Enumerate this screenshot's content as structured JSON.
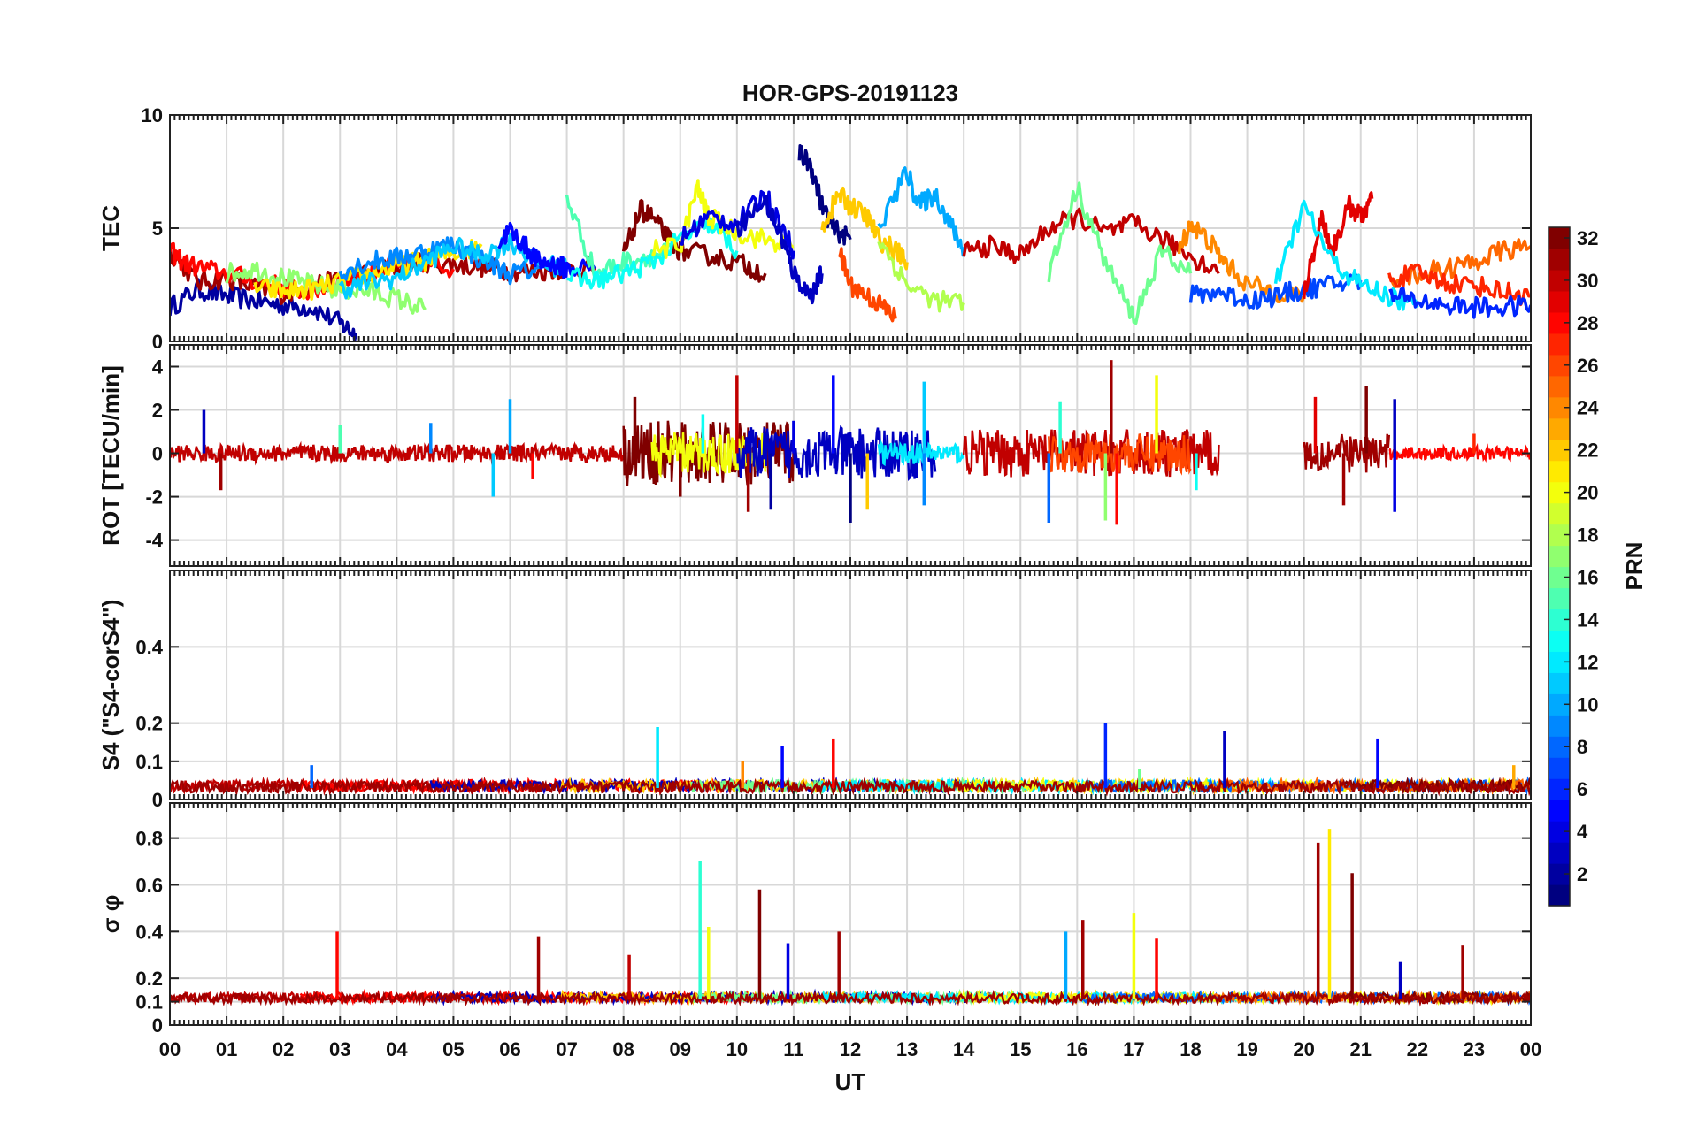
{
  "chart_data": {
    "type": "line",
    "title": "HOR-GPS-20191123",
    "xlabel": "UT",
    "x_ticks": [
      "00",
      "01",
      "02",
      "03",
      "04",
      "05",
      "06",
      "07",
      "08",
      "09",
      "10",
      "11",
      "12",
      "13",
      "14",
      "15",
      "16",
      "17",
      "18",
      "19",
      "20",
      "21",
      "22",
      "23",
      "00"
    ],
    "xlim_hours": [
      0,
      24
    ],
    "colorbar": {
      "label": "PRN",
      "range": [
        1,
        32
      ],
      "ticks": [
        "2",
        "4",
        "6",
        "8",
        "10",
        "12",
        "14",
        "16",
        "18",
        "20",
        "22",
        "24",
        "26",
        "28",
        "30",
        "32"
      ],
      "colormap": "jet"
    },
    "panels": [
      {
        "id": "tec",
        "ylabel": "TEC",
        "ylim": [
          0,
          10
        ],
        "yticks": [
          "0",
          "5",
          "10"
        ],
        "series": [
          {
            "prn": 2,
            "x": [
              0.0,
              0.5,
              1.0,
              1.5,
              2.0,
              2.5,
              3.0,
              3.3
            ],
            "y": [
              1.5,
              2.3,
              2.0,
              1.8,
              1.6,
              1.5,
              0.8,
              0.3
            ]
          },
          {
            "prn": 31,
            "x": [
              0.0,
              0.5,
              1.0,
              1.5,
              2.0,
              2.5,
              3.0,
              3.5,
              4.0,
              4.5,
              5.0,
              5.5,
              6.0,
              6.5,
              7.0,
              7.5
            ],
            "y": [
              4.0,
              2.6,
              2.8,
              2.4,
              2.1,
              2.5,
              2.7,
              3.0,
              3.3,
              3.5,
              3.4,
              3.3,
              3.1,
              3.1,
              3.2,
              3.3
            ]
          },
          {
            "prn": 28,
            "x": [
              0.0,
              0.3,
              0.8,
              1.5,
              2.0,
              2.5,
              3.0,
              3.5,
              4.0,
              4.5,
              5.0
            ],
            "y": [
              4.0,
              3.4,
              3.1,
              2.7,
              2.4,
              2.2,
              2.6,
              3.0,
              3.3,
              3.5,
              3.2
            ]
          },
          {
            "prn": 17,
            "x": [
              1.0,
              1.5,
              2.0,
              2.5,
              3.0,
              3.5,
              4.0,
              4.5
            ],
            "y": [
              3.0,
              3.2,
              2.8,
              2.5,
              2.3,
              2.2,
              1.9,
              1.4
            ]
          },
          {
            "prn": 21,
            "x": [
              1.5,
              2.0,
              2.5,
              3.0,
              3.5,
              4.0,
              4.5,
              5.0,
              5.5
            ],
            "y": [
              2.4,
              2.2,
              2.3,
              2.6,
              3.0,
              3.3,
              3.6,
              3.9,
              4.2
            ]
          },
          {
            "prn": 9,
            "x": [
              3.0,
              3.5,
              4.0,
              4.5,
              5.0,
              5.5,
              6.0,
              6.5
            ],
            "y": [
              3.1,
              3.5,
              3.7,
              4.0,
              4.3,
              3.6,
              3.0,
              3.2
            ]
          },
          {
            "prn": 11,
            "x": [
              3.0,
              3.5,
              4.0,
              4.5,
              5.0,
              5.5,
              6.0,
              6.5,
              7.0
            ],
            "y": [
              2.3,
              2.6,
              2.8,
              3.5,
              4.2,
              3.8,
              4.4,
              3.5,
              3.2
            ]
          },
          {
            "prn": 5,
            "x": [
              5.8,
              6.0,
              6.3,
              6.5,
              6.8,
              7.0,
              7.5
            ],
            "y": [
              4.4,
              4.9,
              4.1,
              3.5,
              3.4,
              3.2,
              3.3
            ]
          },
          {
            "prn": 15,
            "x": [
              7.0,
              7.5,
              8.0,
              8.5,
              9.0
            ],
            "y": [
              6.4,
              3.0,
              3.5,
              3.8,
              4.0
            ]
          },
          {
            "prn": 32,
            "x": [
              8.0,
              8.3,
              8.5,
              8.8,
              9.0,
              9.5,
              10.0,
              10.5
            ],
            "y": [
              3.8,
              5.8,
              5.5,
              4.5,
              4.0,
              3.8,
              3.5,
              3.0
            ]
          },
          {
            "prn": 13,
            "x": [
              7.0,
              7.5,
              8.0,
              8.5,
              9.0,
              9.5,
              10.0
            ],
            "y": [
              2.8,
              2.7,
              3.0,
              3.5,
              4.5,
              5.2,
              4.0
            ]
          },
          {
            "prn": 20,
            "x": [
              8.5,
              9.0,
              9.3,
              9.5,
              10.0,
              10.5,
              11.0
            ],
            "y": [
              4.0,
              4.2,
              6.8,
              5.5,
              4.8,
              4.5,
              4.2
            ]
          },
          {
            "prn": 4,
            "x": [
              9.0,
              9.5,
              10.0,
              10.5,
              10.8,
              11.0
            ],
            "y": [
              4.5,
              5.5,
              5.2,
              6.5,
              5.0,
              4.0
            ]
          },
          {
            "prn": 3,
            "x": [
              10.0,
              10.5,
              10.8,
              11.0,
              11.3,
              11.5
            ],
            "y": [
              5.0,
              6.2,
              4.5,
              3.0,
              2.0,
              3.0
            ]
          },
          {
            "prn": 1,
            "x": [
              11.1,
              11.3,
              11.5,
              11.7,
              12.0
            ],
            "y": [
              8.3,
              7.8,
              6.0,
              5.0,
              4.5
            ]
          },
          {
            "prn": 22,
            "x": [
              11.5,
              11.8,
              12.0,
              12.3,
              12.5,
              12.8,
              13.0
            ],
            "y": [
              5.0,
              6.5,
              6.0,
              5.5,
              4.5,
              4.0,
              3.5
            ]
          },
          {
            "prn": 26,
            "x": [
              11.8,
              12.0,
              12.3,
              12.6,
              12.8
            ],
            "y": [
              4.0,
              2.5,
              2.0,
              1.5,
              1.0
            ]
          },
          {
            "prn": 10,
            "x": [
              12.5,
              13.0,
              13.2,
              13.5,
              13.8,
              14.0
            ],
            "y": [
              5.0,
              7.5,
              6.0,
              6.5,
              5.0,
              4.0
            ]
          },
          {
            "prn": 18,
            "x": [
              12.5,
              13.0,
              13.5,
              14.0
            ],
            "y": [
              4.5,
              2.5,
              1.8,
              1.7
            ]
          },
          {
            "prn": 30,
            "x": [
              14.0,
              14.5,
              15.0,
              15.5,
              16.0,
              16.5,
              17.0,
              17.5,
              18.0,
              18.5
            ],
            "y": [
              4.0,
              4.2,
              3.8,
              5.0,
              5.5,
              4.8,
              5.2,
              4.5,
              3.8,
              3.0
            ]
          },
          {
            "prn": 16,
            "x": [
              15.5,
              16.0,
              16.5,
              17.0,
              17.5,
              18.0
            ],
            "y": [
              3.0,
              6.8,
              3.5,
              1.0,
              4.0,
              3.0
            ]
          },
          {
            "prn": 24,
            "x": [
              17.8,
              18.0,
              18.3,
              18.6,
              19.0,
              19.5,
              20.0
            ],
            "y": [
              4.0,
              5.2,
              4.5,
              3.5,
              2.5,
              2.2,
              2.0
            ]
          },
          {
            "prn": 7,
            "x": [
              18.0,
              18.5,
              19.0,
              19.5,
              20.0,
              20.5,
              21.0
            ],
            "y": [
              2.0,
              2.2,
              1.8,
              2.0,
              2.3,
              2.5,
              2.7
            ]
          },
          {
            "prn": 29,
            "x": [
              20.0,
              20.3,
              20.5,
              20.8,
              21.0,
              21.2
            ],
            "y": [
              2.0,
              5.5,
              4.0,
              6.0,
              5.5,
              6.3
            ]
          },
          {
            "prn": 12,
            "x": [
              19.5,
              20.0,
              20.5,
              21.0,
              21.5,
              22.0
            ],
            "y": [
              2.5,
              6.0,
              3.5,
              2.5,
              2.0,
              1.5
            ]
          },
          {
            "prn": 25,
            "x": [
              21.5,
              22.0,
              22.5,
              23.0,
              23.5,
              24.0
            ],
            "y": [
              2.8,
              3.0,
              3.2,
              3.5,
              4.0,
              4.2
            ]
          },
          {
            "prn": 27,
            "x": [
              21.5,
              22.0,
              22.5,
              23.0,
              23.5,
              24.0
            ],
            "y": [
              2.7,
              3.0,
              2.6,
              2.5,
              2.2,
              2.0
            ]
          },
          {
            "prn": 6,
            "x": [
              21.5,
              22.0,
              22.5,
              23.0,
              23.5,
              24.0
            ],
            "y": [
              2.0,
              1.8,
              1.6,
              1.5,
              1.5,
              1.6
            ]
          }
        ]
      },
      {
        "id": "rot",
        "ylabel": "ROT [TECU/min]",
        "ylim": [
          -5.2,
          5
        ],
        "yticks": [
          "-4",
          "-2",
          "0",
          "2",
          "4"
        ],
        "spikes": [
          {
            "prn": 3,
            "x": 0.6,
            "y": 2.0
          },
          {
            "prn": 31,
            "x": 0.9,
            "y": -1.7
          },
          {
            "prn": 15,
            "x": 3.0,
            "y": 1.3
          },
          {
            "prn": 9,
            "x": 4.6,
            "y": 1.4
          },
          {
            "prn": 11,
            "x": 5.7,
            "y": -2.0
          },
          {
            "prn": 10,
            "x": 6.0,
            "y": 2.5
          },
          {
            "prn": 28,
            "x": 6.4,
            "y": -1.2
          },
          {
            "prn": 32,
            "x": 8.2,
            "y": 2.6
          },
          {
            "prn": 32,
            "x": 9.0,
            "y": -2.0
          },
          {
            "prn": 13,
            "x": 9.4,
            "y": 1.8
          },
          {
            "prn": 30,
            "x": 10.0,
            "y": 3.6
          },
          {
            "prn": 31,
            "x": 10.2,
            "y": -2.7
          },
          {
            "prn": 2,
            "x": 10.6,
            "y": -2.6
          },
          {
            "prn": 4,
            "x": 11.0,
            "y": 1.5
          },
          {
            "prn": 5,
            "x": 11.7,
            "y": 3.6
          },
          {
            "prn": 1,
            "x": 12.0,
            "y": -3.2
          },
          {
            "prn": 22,
            "x": 12.3,
            "y": -2.6
          },
          {
            "prn": 11,
            "x": 13.3,
            "y": 3.3
          },
          {
            "prn": 9,
            "x": 13.3,
            "y": -2.4
          },
          {
            "prn": 8,
            "x": 15.5,
            "y": -3.2
          },
          {
            "prn": 14,
            "x": 15.7,
            "y": 2.4
          },
          {
            "prn": 17,
            "x": 16.5,
            "y": -3.1
          },
          {
            "prn": 31,
            "x": 16.6,
            "y": 4.3
          },
          {
            "prn": 28,
            "x": 16.7,
            "y": -3.3
          },
          {
            "prn": 20,
            "x": 17.4,
            "y": 3.6
          },
          {
            "prn": 13,
            "x": 18.1,
            "y": -1.7
          },
          {
            "prn": 29,
            "x": 20.2,
            "y": 2.6
          },
          {
            "prn": 31,
            "x": 20.7,
            "y": -2.4
          },
          {
            "prn": 32,
            "x": 21.1,
            "y": 3.1
          },
          {
            "prn": 3,
            "x": 21.6,
            "y": 2.5
          },
          {
            "prn": 4,
            "x": 21.6,
            "y": -2.7
          },
          {
            "prn": 27,
            "x": 23.0,
            "y": 0.9
          }
        ],
        "bursts": [
          {
            "prn": 30,
            "start": 0.0,
            "end": 8.0,
            "amp": 0.4
          },
          {
            "prn": 32,
            "start": 8.0,
            "end": 11.0,
            "amp": 1.5
          },
          {
            "prn": 20,
            "start": 8.5,
            "end": 10.5,
            "amp": 1.0
          },
          {
            "prn": 3,
            "start": 10.0,
            "end": 13.5,
            "amp": 1.2
          },
          {
            "prn": 12,
            "start": 12.5,
            "end": 14.0,
            "amp": 0.5
          },
          {
            "prn": 30,
            "start": 14.0,
            "end": 18.5,
            "amp": 1.1
          },
          {
            "prn": 26,
            "start": 15.5,
            "end": 18.0,
            "amp": 0.9
          },
          {
            "prn": 31,
            "start": 20.0,
            "end": 21.5,
            "amp": 0.9
          },
          {
            "prn": 28,
            "start": 21.5,
            "end": 24.0,
            "amp": 0.3
          }
        ]
      },
      {
        "id": "s4",
        "ylabel": "S4 (\"S4-corS4\")",
        "ylim": [
          0,
          0.6
        ],
        "yticks": [
          "0",
          "0.1",
          "0.2",
          "0.4"
        ],
        "spikes": [
          {
            "prn": 12,
            "x": 8.6,
            "y": 0.19
          },
          {
            "prn": 5,
            "x": 10.8,
            "y": 0.14
          },
          {
            "prn": 28,
            "x": 11.7,
            "y": 0.16
          },
          {
            "prn": 24,
            "x": 10.1,
            "y": 0.1
          },
          {
            "prn": 6,
            "x": 16.5,
            "y": 0.2
          },
          {
            "prn": 3,
            "x": 18.6,
            "y": 0.18
          },
          {
            "prn": 5,
            "x": 21.3,
            "y": 0.16
          },
          {
            "prn": 8,
            "x": 2.5,
            "y": 0.09
          },
          {
            "prn": 16,
            "x": 17.1,
            "y": 0.08
          },
          {
            "prn": 23,
            "x": 23.7,
            "y": 0.09
          }
        ],
        "baseline": {
          "level": 0.03,
          "amp": 0.03
        }
      },
      {
        "id": "sigma_phi",
        "ylabel": "σ φ",
        "ylim": [
          0,
          0.95
        ],
        "yticks": [
          "0",
          "0.1",
          "0.2",
          "0.4",
          "0.6",
          "0.8"
        ],
        "spikes": [
          {
            "prn": 28,
            "x": 2.95,
            "y": 0.4
          },
          {
            "prn": 31,
            "x": 6.5,
            "y": 0.38
          },
          {
            "prn": 30,
            "x": 8.1,
            "y": 0.3
          },
          {
            "prn": 14,
            "x": 9.35,
            "y": 0.7
          },
          {
            "prn": 20,
            "x": 9.5,
            "y": 0.42
          },
          {
            "prn": 32,
            "x": 10.4,
            "y": 0.58
          },
          {
            "prn": 4,
            "x": 10.9,
            "y": 0.35
          },
          {
            "prn": 31,
            "x": 11.8,
            "y": 0.4
          },
          {
            "prn": 10,
            "x": 15.8,
            "y": 0.4
          },
          {
            "prn": 31,
            "x": 16.1,
            "y": 0.45
          },
          {
            "prn": 20,
            "x": 17.0,
            "y": 0.48
          },
          {
            "prn": 28,
            "x": 17.4,
            "y": 0.37
          },
          {
            "prn": 31,
            "x": 20.25,
            "y": 0.78
          },
          {
            "prn": 21,
            "x": 20.45,
            "y": 0.84
          },
          {
            "prn": 32,
            "x": 20.85,
            "y": 0.65
          },
          {
            "prn": 3,
            "x": 21.7,
            "y": 0.27
          },
          {
            "prn": 31,
            "x": 22.8,
            "y": 0.34
          }
        ],
        "baseline": {
          "level": 0.11,
          "amp": 0.04
        }
      }
    ]
  }
}
